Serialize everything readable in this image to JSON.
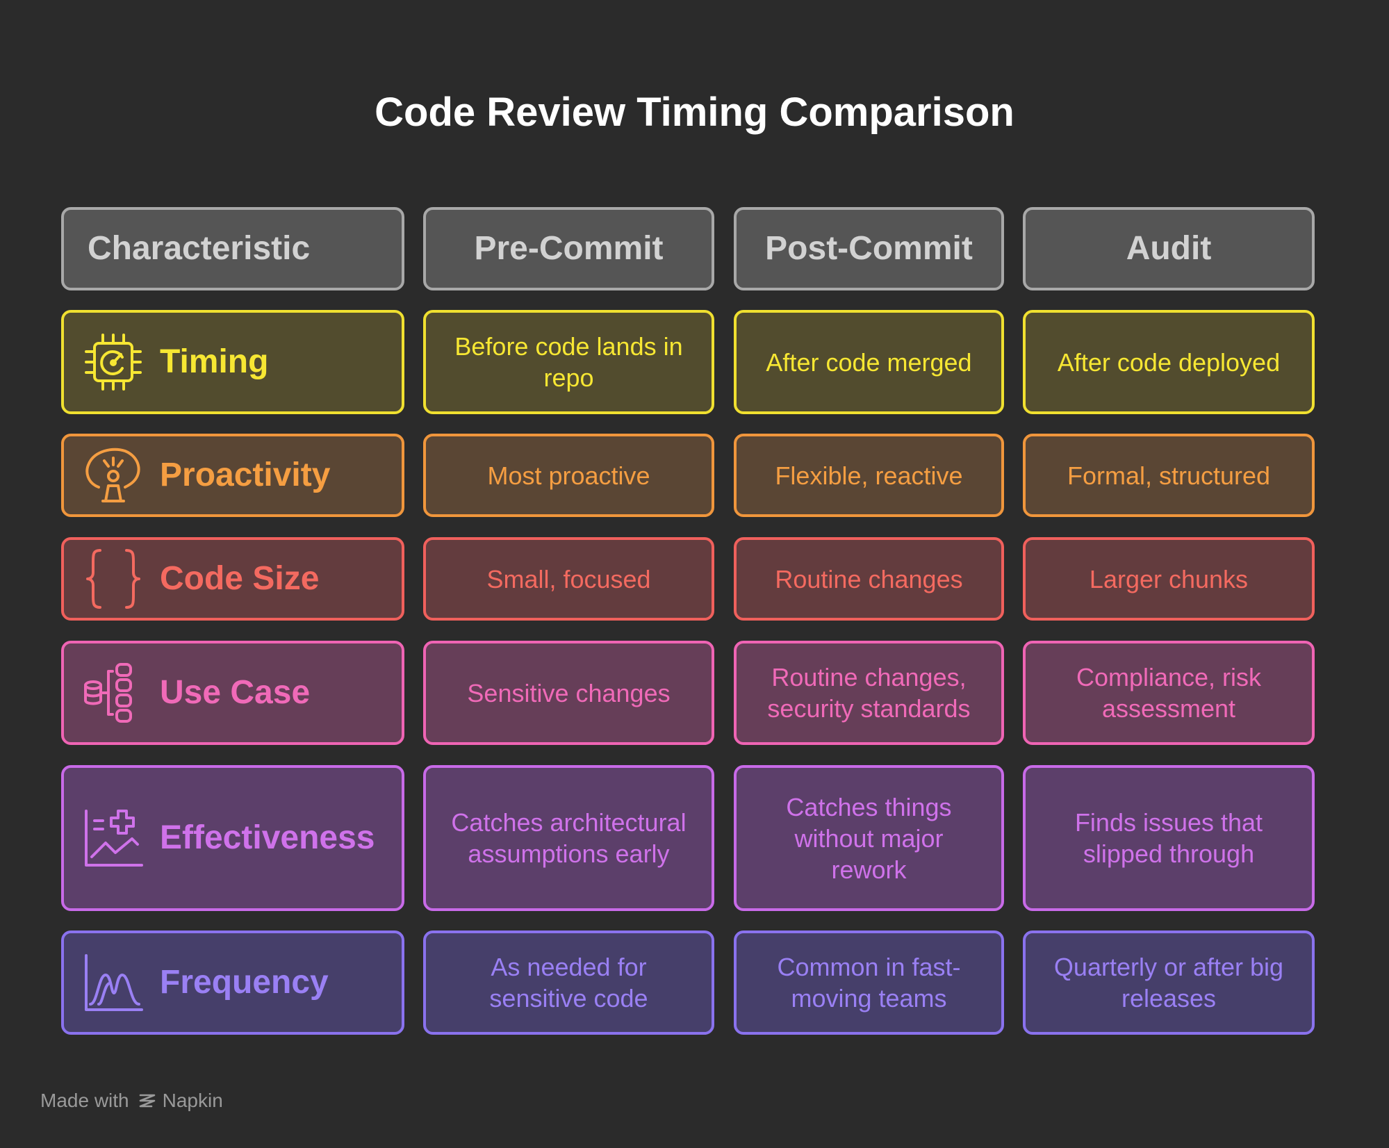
{
  "title": "Code Review Timing Comparison",
  "columns": [
    "Characteristic",
    "Pre-Commit",
    "Post-Commit",
    "Audit"
  ],
  "rows": [
    {
      "label": "Timing",
      "icon": "chip-gauge-icon",
      "color": "#f7e733",
      "cells": [
        "Before code lands in repo",
        "After code merged",
        "After code deployed"
      ]
    },
    {
      "label": "Proactivity",
      "icon": "person-alert-icon",
      "color": "#f59e42",
      "cells": [
        "Most proactive",
        "Flexible, reactive",
        "Formal, structured"
      ]
    },
    {
      "label": "Code Size",
      "icon": "curly-braces-icon",
      "color": "#f46a60",
      "cells": [
        "Small, focused",
        "Routine changes",
        "Larger chunks"
      ]
    },
    {
      "label": "Use Case",
      "icon": "database-tree-icon",
      "color": "#f06ab8",
      "cells": [
        "Sensitive changes",
        "Routine changes, security standards",
        "Compliance, risk assessment"
      ]
    },
    {
      "label": "Effectiveness",
      "icon": "chart-plus-icon",
      "color": "#cf72ea",
      "cells": [
        "Catches architectural assumptions early",
        "Catches things without major rework",
        "Finds issues that slipped through"
      ]
    },
    {
      "label": "Frequency",
      "icon": "bell-curve-icon",
      "color": "#9a80f4",
      "cells": [
        "As needed for sensitive code",
        "Common in fast-moving teams",
        "Quarterly or after big releases"
      ]
    }
  ],
  "footer": {
    "prefix": "Made with",
    "brand": "Napkin",
    "icon": "napkin-logo-icon"
  }
}
